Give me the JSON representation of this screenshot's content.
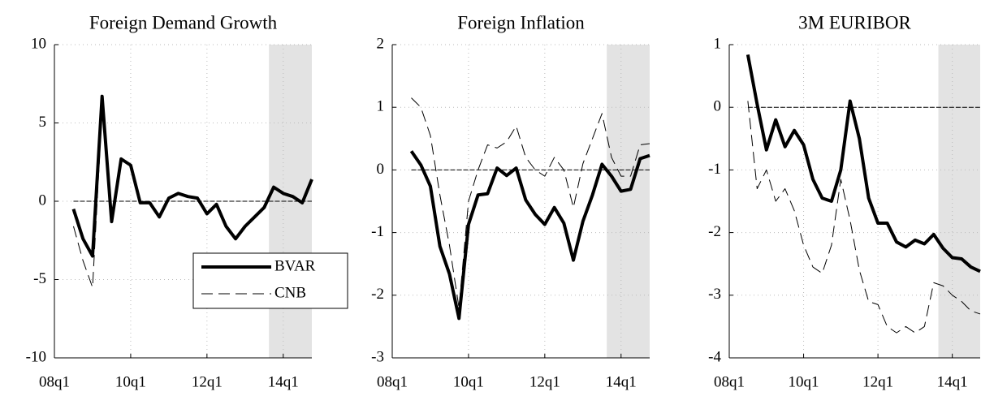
{
  "chart_data": [
    {
      "type": "line",
      "title": "Foreign Demand Growth",
      "x": [
        2,
        3,
        4,
        5,
        6,
        7,
        8,
        9,
        10,
        11,
        12,
        13,
        14,
        15,
        16,
        17,
        18,
        19,
        20,
        21,
        22,
        23,
        24,
        25,
        26,
        27
      ],
      "xlim": [
        0,
        27
      ],
      "ylim": [
        -10,
        10
      ],
      "xticks": [
        {
          "value": 0,
          "label": "08q1"
        },
        {
          "value": 8,
          "label": "10q1"
        },
        {
          "value": 16,
          "label": "12q1"
        },
        {
          "value": 24,
          "label": "14q1"
        }
      ],
      "yticks": [
        -10,
        -5,
        0,
        5,
        10
      ],
      "grid": true,
      "zero_line": 0,
      "shade": [
        22.5,
        27
      ],
      "legend": "lower right",
      "series": [
        {
          "name": "BVAR",
          "color": "#000000",
          "line_width": 4,
          "dashed": false,
          "values": [
            -0.5,
            -2.4,
            -3.5,
            6.7,
            -1.3,
            2.7,
            2.3,
            -0.1,
            -0.1,
            -1.0,
            0.2,
            0.5,
            0.3,
            0.2,
            -0.8,
            -0.2,
            -1.6,
            -2.4,
            -1.6,
            -1.0,
            -0.4,
            0.9,
            0.5,
            0.3,
            -0.1,
            1.4
          ]
        },
        {
          "name": "CNB",
          "color": "#000000",
          "line_width": 1,
          "dashed": true,
          "values": [
            -1.6,
            -3.8,
            -5.5,
            5.8,
            -1.5,
            2.8,
            2.2,
            -0.1,
            -0.1,
            -1.0,
            0.2,
            0.5,
            0.3,
            0.2,
            -0.8,
            -0.2,
            -1.6,
            -2.4,
            -1.6,
            -1.0,
            -0.4,
            0.9,
            0.5,
            0.3,
            -0.1,
            1.4
          ]
        }
      ]
    },
    {
      "type": "line",
      "title": "Foreign Inflation",
      "x": [
        2,
        3,
        4,
        5,
        6,
        7,
        8,
        9,
        10,
        11,
        12,
        13,
        14,
        15,
        16,
        17,
        18,
        19,
        20,
        21,
        22,
        23,
        24,
        25,
        26,
        27
      ],
      "xlim": [
        0,
        27
      ],
      "ylim": [
        -3,
        2
      ],
      "xticks": [
        {
          "value": 0,
          "label": "08q1"
        },
        {
          "value": 8,
          "label": "10q1"
        },
        {
          "value": 16,
          "label": "12q1"
        },
        {
          "value": 24,
          "label": "14q1"
        }
      ],
      "yticks": [
        -3,
        -2,
        -1,
        0,
        1,
        2
      ],
      "grid": true,
      "zero_line": 0,
      "shade": [
        22.5,
        27
      ],
      "series": [
        {
          "color": "#000000",
          "line_width": 4,
          "dashed": false,
          "values": [
            0.3,
            0.08,
            -0.26,
            -1.22,
            -1.66,
            -2.37,
            -0.87,
            -0.4,
            -0.38,
            0.03,
            -0.09,
            0.03,
            -0.48,
            -0.71,
            -0.87,
            -0.6,
            -0.85,
            -1.44,
            -0.82,
            -0.4,
            0.09,
            -0.1,
            -0.34,
            -0.31,
            0.18,
            0.23
          ]
        },
        {
          "color": "#000000",
          "line_width": 1,
          "dashed": true,
          "values": [
            1.15,
            1.0,
            0.55,
            -0.4,
            -1.2,
            -2.2,
            -0.5,
            0.0,
            0.4,
            0.35,
            0.45,
            0.7,
            0.2,
            0.0,
            -0.1,
            0.2,
            0.0,
            -0.6,
            0.1,
            0.5,
            0.9,
            0.2,
            -0.1,
            -0.1,
            0.4,
            0.42
          ]
        }
      ]
    },
    {
      "type": "line",
      "title": "3M EURIBOR",
      "x": [
        2,
        3,
        4,
        5,
        6,
        7,
        8,
        9,
        10,
        11,
        12,
        13,
        14,
        15,
        16,
        17,
        18,
        19,
        20,
        21,
        22,
        23,
        24,
        25,
        26,
        27
      ],
      "xlim": [
        0,
        27
      ],
      "ylim": [
        -4,
        1
      ],
      "xticks": [
        {
          "value": 0,
          "label": "08q1"
        },
        {
          "value": 8,
          "label": "10q1"
        },
        {
          "value": 16,
          "label": "12q1"
        },
        {
          "value": 24,
          "label": "14q1"
        }
      ],
      "yticks": [
        -4,
        -3,
        -2,
        -1,
        0,
        1
      ],
      "grid": true,
      "zero_line": 0,
      "shade": [
        22.5,
        27
      ],
      "series": [
        {
          "color": "#000000",
          "line_width": 4,
          "dashed": false,
          "values": [
            0.84,
            0.05,
            -0.68,
            -0.2,
            -0.63,
            -0.37,
            -0.6,
            -1.15,
            -1.45,
            -1.5,
            -1.0,
            0.1,
            -0.5,
            -1.45,
            -1.85,
            -1.85,
            -2.15,
            -2.23,
            -2.12,
            -2.18,
            -2.03,
            -2.25,
            -2.4,
            -2.42,
            -2.55,
            -2.62
          ]
        },
        {
          "color": "#000000",
          "line_width": 1,
          "dashed": true,
          "values": [
            0.1,
            -1.3,
            -1.0,
            -1.5,
            -1.3,
            -1.65,
            -2.2,
            -2.55,
            -2.65,
            -2.2,
            -1.15,
            -1.8,
            -2.6,
            -3.1,
            -3.15,
            -3.5,
            -3.6,
            -3.5,
            -3.6,
            -3.5,
            -2.8,
            -2.85,
            -3.0,
            -3.1,
            -3.25,
            -3.3
          ]
        }
      ]
    }
  ]
}
